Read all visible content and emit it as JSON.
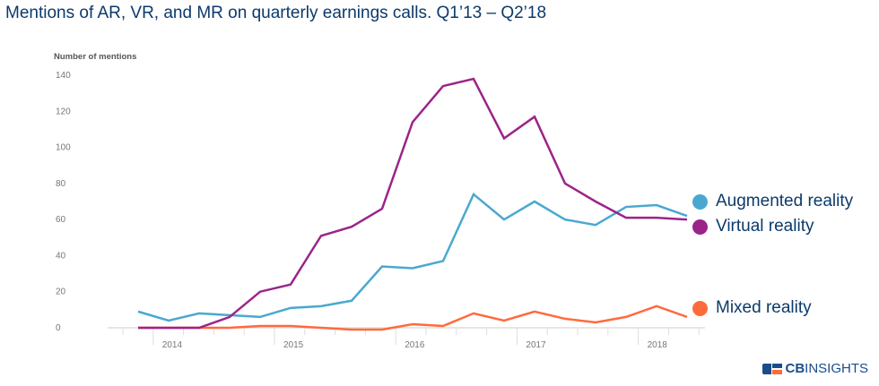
{
  "chart_data": {
    "type": "line",
    "title": "Mentions of AR, VR, and MR on quarterly earnings calls. Q1’13 – Q2’18",
    "ylabel": "Number of mentions",
    "xlabel": "",
    "ylim": [
      0,
      140
    ],
    "yticks": [
      0,
      20,
      40,
      60,
      80,
      100,
      120,
      140
    ],
    "xtick_labels": [
      "2014",
      "2015",
      "2016",
      "2017",
      "2018"
    ],
    "grid": false,
    "legend_placement": "right",
    "x": [
      "Q4'13",
      "Q1'14",
      "Q2'14",
      "Q3'14",
      "Q4'14",
      "Q1'15",
      "Q2'15",
      "Q3'15",
      "Q4'15",
      "Q1'16",
      "Q2'16",
      "Q3'16",
      "Q4'16",
      "Q1'17",
      "Q2'17",
      "Q3'17",
      "Q4'17",
      "Q1'18",
      "Q2'18"
    ],
    "series": [
      {
        "name": "Augmented reality",
        "color": "#4aa8d0",
        "values": [
          9,
          4,
          8,
          7,
          6,
          11,
          12,
          15,
          34,
          33,
          37,
          74,
          60,
          70,
          60,
          57,
          67,
          68,
          62
        ]
      },
      {
        "name": "Virtual reality",
        "color": "#9b2489",
        "values": [
          0,
          0,
          0,
          6,
          20,
          24,
          51,
          56,
          66,
          114,
          134,
          138,
          105,
          117,
          80,
          70,
          61,
          61,
          60
        ]
      },
      {
        "name": "Mixed reality",
        "color": "#ff6a3d",
        "values": [
          0,
          0,
          0,
          0,
          1,
          1,
          0,
          -1,
          -1,
          2,
          1,
          8,
          4,
          9,
          5,
          3,
          6,
          12,
          6
        ]
      }
    ]
  },
  "branding": {
    "logo_cb": "CB",
    "logo_insights": "INSIGHTS"
  }
}
